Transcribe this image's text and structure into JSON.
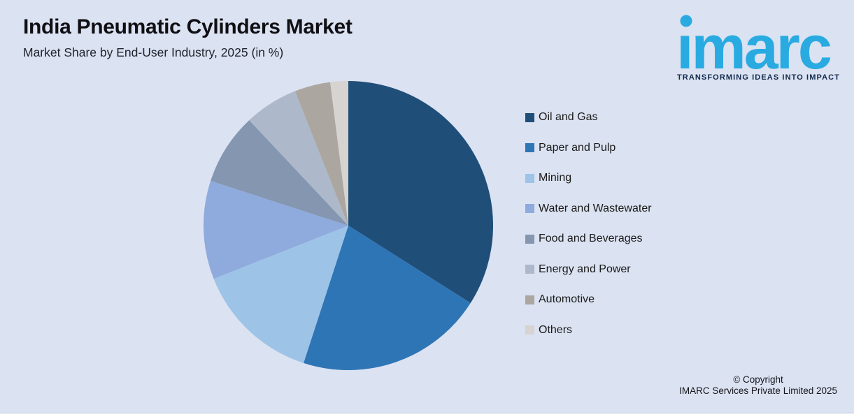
{
  "header": {
    "title": "India Pneumatic Cylinders Market",
    "subtitle": "Market Share by End-User Industry, 2025 (in %)"
  },
  "brand": {
    "logo_text": "imarc",
    "tagline": "TRANSFORMING IDEAS INTO IMPACT",
    "logo_color": "#29abe2",
    "tagline_color": "#112a4d"
  },
  "chart_data": {
    "type": "pie",
    "title": "India Pneumatic Cylinders Market",
    "subtitle": "Market Share by End-User Industry, 2025 (in %)",
    "unit": "%",
    "start_angle_deg": 0,
    "direction": "clockwise",
    "legend_position": "right",
    "grid": false,
    "categories": [
      "Oil and Gas",
      "Paper and Pulp",
      "Mining",
      "Water and Wastewater",
      "Food and Beverages",
      "Energy and Power",
      "Automotive",
      "Others"
    ],
    "values": [
      34,
      21,
      14,
      11,
      8,
      6,
      4,
      2
    ],
    "colors": [
      "#1f4e79",
      "#2e75b6",
      "#9dc3e6",
      "#8faadc",
      "#8496b0",
      "#adb9ca",
      "#aca6a0",
      "#d6d3d0"
    ]
  },
  "footer": {
    "copyright_line1": "© Copyright",
    "copyright_line2": "IMARC Services Private Limited 2025"
  },
  "page": {
    "background": "#dbe2f1",
    "bottom_strip": "#ffffff"
  }
}
